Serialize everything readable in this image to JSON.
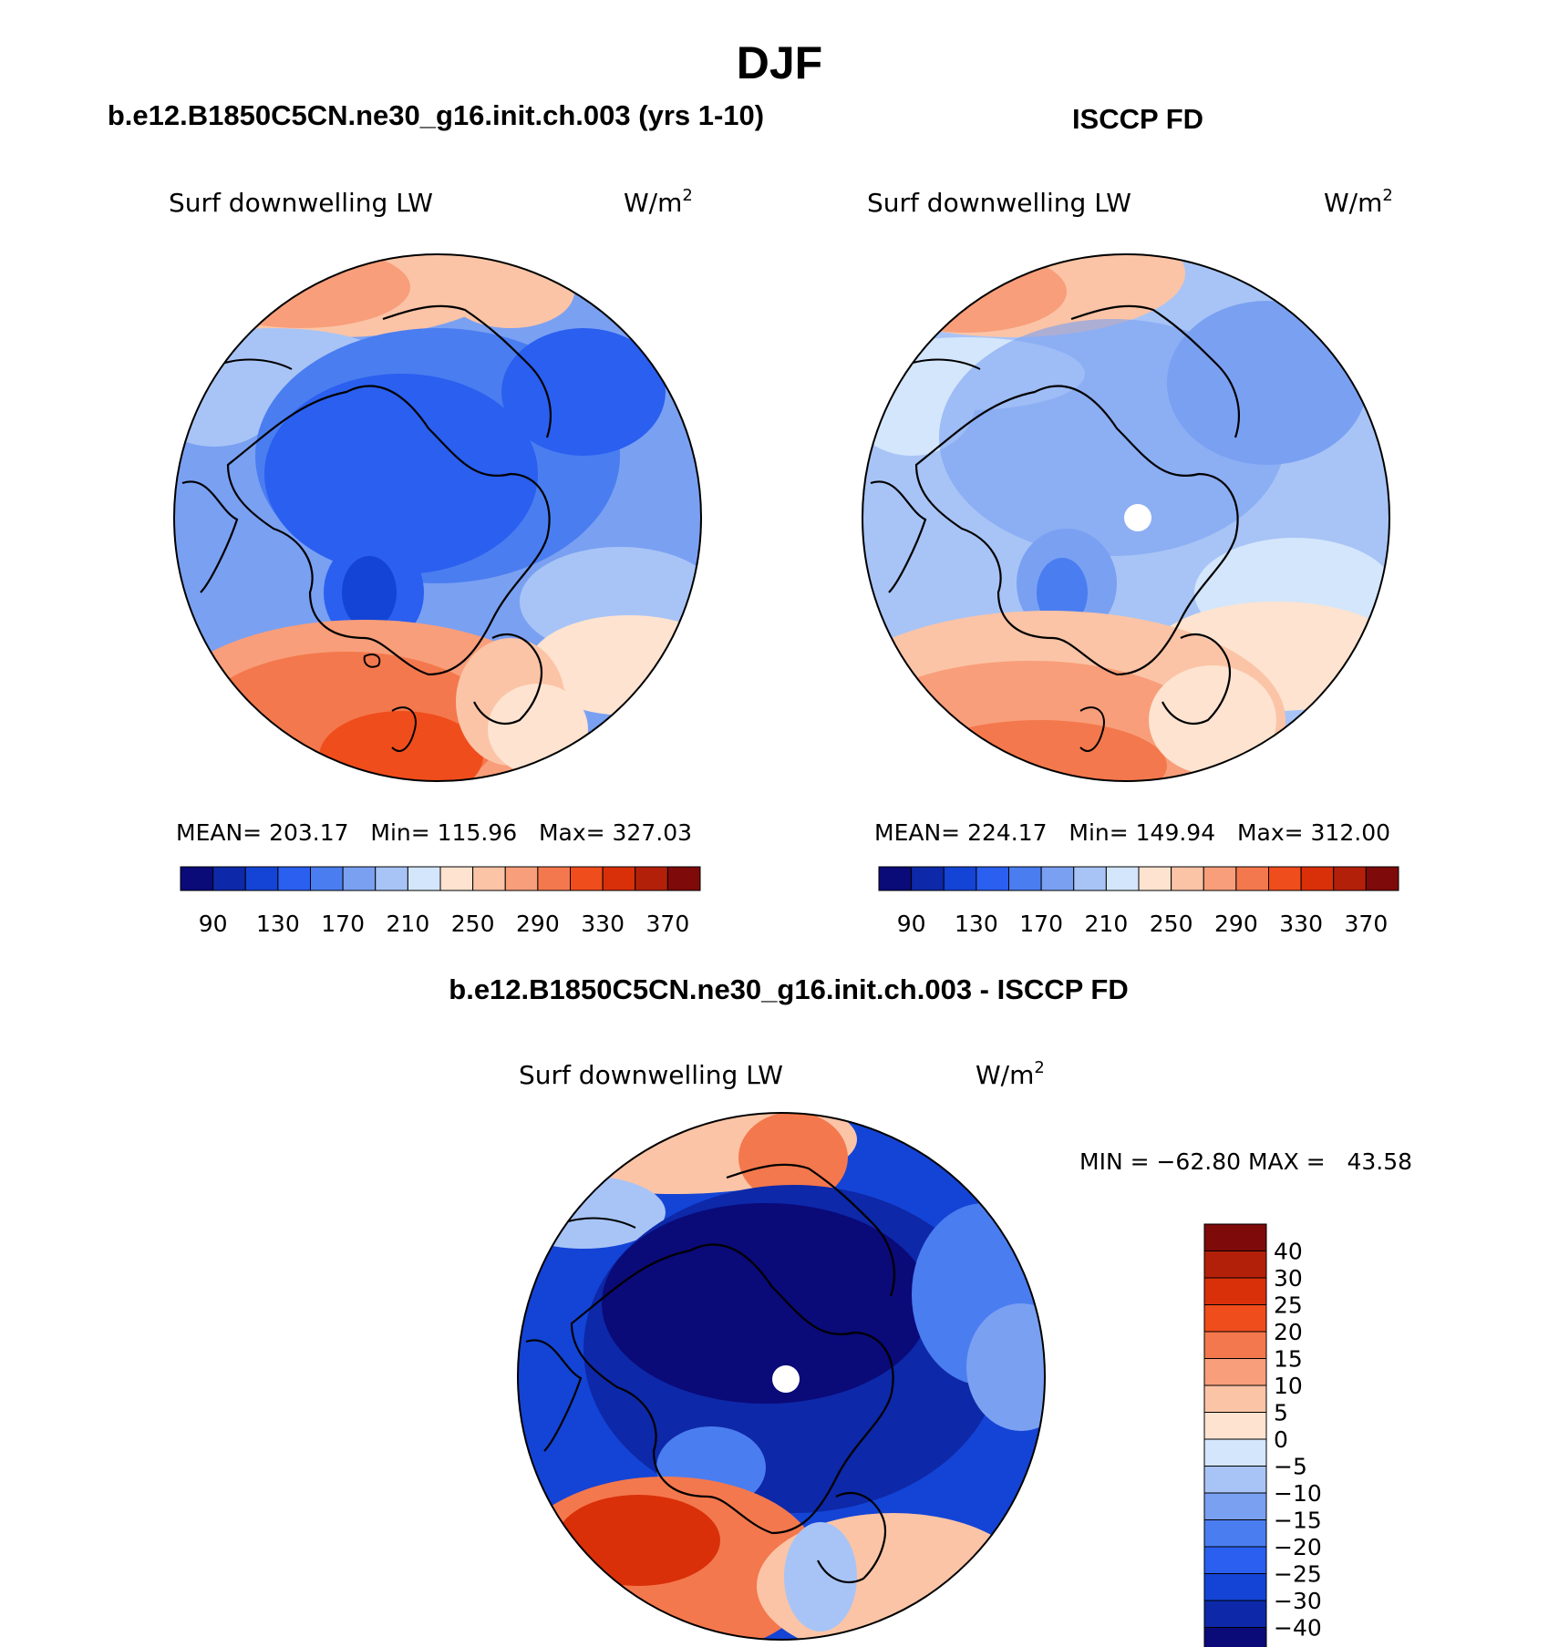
{
  "title": "DJF",
  "panels": [
    {
      "heading": "b.e12.B1850C5CN.ne30_g16.init.ch.003 (yrs 1-10)",
      "variable": "Surf downwelling LW",
      "units": "W/m",
      "units_sup": "2",
      "stats": "MEAN= 203.17   Min= 115.96   Max= 327.03"
    },
    {
      "heading": "ISCCP FD",
      "variable": "Surf downwelling LW",
      "units": "W/m",
      "units_sup": "2",
      "stats": "MEAN= 224.17   Min= 149.94   Max= 312.00"
    },
    {
      "heading": "b.e12.B1850C5CN.ne30_g16.init.ch.003 - ISCCP FD",
      "variable": "Surf downwelling LW",
      "units": "W/m",
      "units_sup": "2",
      "stats": "MIN = −62.80 MAX =   43.58"
    }
  ],
  "abs_colorbar": {
    "labels": [
      "90",
      "130",
      "170",
      "210",
      "250",
      "290",
      "330",
      "370"
    ],
    "colors": [
      "#0a0a78",
      "#0d28a8",
      "#1444d6",
      "#2a5ff0",
      "#4a7df0",
      "#7aa0f2",
      "#a8c4f6",
      "#d4e6fb",
      "#fde3d0",
      "#fbc4a6",
      "#f89e7a",
      "#f4784d",
      "#f04d1c",
      "#d9300a",
      "#b3200a",
      "#7e0a0a"
    ]
  },
  "diff_colorbar": {
    "labels": [
      "40",
      "30",
      "25",
      "20",
      "15",
      "10",
      "5",
      "0",
      "−5",
      "−10",
      "−15",
      "−20",
      "−25",
      "−30",
      "−40"
    ],
    "colors": [
      "#7e0a0a",
      "#b3200a",
      "#d9300a",
      "#f04d1c",
      "#f4784d",
      "#f89e7a",
      "#fbc4a6",
      "#fde3d0",
      "#d4e6fb",
      "#a8c4f6",
      "#7aa0f2",
      "#4a7df0",
      "#2a5ff0",
      "#1444d6",
      "#0d28a8",
      "#0a0a78"
    ]
  }
}
